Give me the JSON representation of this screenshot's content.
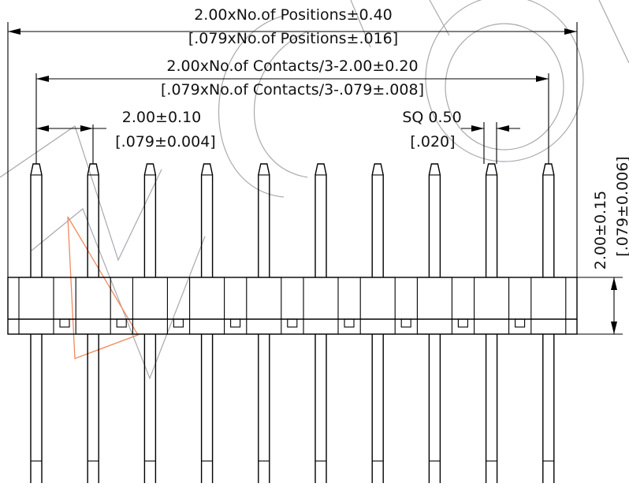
{
  "dimensions": {
    "overall": {
      "metric": "2.00xNo.of Positions±0.40",
      "imperial": "[.079xNo.of Positions±.016]"
    },
    "contacts": {
      "metric": "2.00xNo.of Contacts/3-2.00±0.20",
      "imperial": "[.079xNo.of Contacts/3-.079±.008]"
    },
    "pitch": {
      "metric": "2.00±0.10",
      "imperial": "[.079±0.004]"
    },
    "pin_square": {
      "metric": "SQ  0.50",
      "imperial": "[.020]"
    },
    "housing_height": {
      "metric": "2.00±0.15",
      "imperial": "[.079±0.006]"
    }
  },
  "pin_count": 10
}
